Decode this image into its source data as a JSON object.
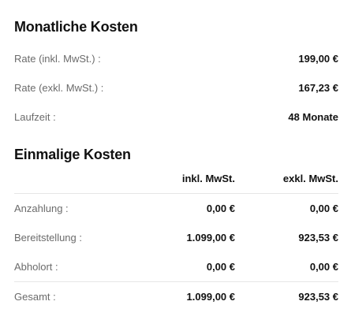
{
  "monthly": {
    "title": "Monatliche Kosten",
    "rows": [
      {
        "label": "Rate (inkl. MwSt.) :",
        "value": "199,00 €"
      },
      {
        "label": "Rate (exkl. MwSt.) :",
        "value": "167,23 €"
      },
      {
        "label": "Laufzeit :",
        "value": "48 Monate"
      }
    ]
  },
  "onetime": {
    "title": "Einmalige Kosten",
    "col_incl": "inkl. MwSt.",
    "col_excl": "exkl. MwSt.",
    "rows": [
      {
        "label": "Anzahlung :",
        "incl": "0,00 €",
        "excl": "0,00 €"
      },
      {
        "label": "Bereitstellung :",
        "incl": "1.099,00 €",
        "excl": "923,53 €"
      },
      {
        "label": "Abholort :",
        "incl": "0,00 €",
        "excl": "0,00 €"
      }
    ],
    "total": {
      "label": "Gesamt :",
      "incl": "1.099,00 €",
      "excl": "923,53 €"
    }
  }
}
